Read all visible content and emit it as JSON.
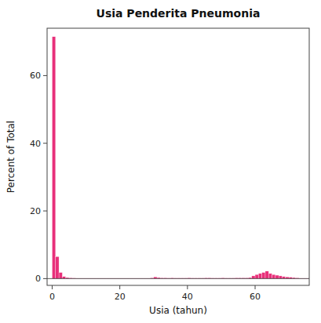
{
  "chart_data": {
    "type": "histogram",
    "title": "Usia Penderita Pneumonia",
    "xlabel": "Usia (tahun)",
    "ylabel": "Percent of Total",
    "color": "#E8307A",
    "xlim": [
      -1.5,
      76
    ],
    "ylim": [
      -2,
      74
    ],
    "xticks": [
      0,
      20,
      40,
      60
    ],
    "yticks": [
      0,
      20,
      40,
      60
    ],
    "bins": [
      0,
      1,
      2,
      3,
      4,
      5,
      6,
      7,
      8,
      9,
      10,
      11,
      12,
      13,
      14,
      15,
      16,
      17,
      18,
      19,
      20,
      21,
      22,
      23,
      24,
      25,
      26,
      27,
      28,
      29,
      30,
      31,
      32,
      33,
      34,
      35,
      36,
      37,
      38,
      39,
      40,
      41,
      42,
      43,
      44,
      45,
      46,
      47,
      48,
      49,
      50,
      51,
      52,
      53,
      54,
      55,
      56,
      57,
      58,
      59,
      60,
      61,
      62,
      63,
      64,
      65,
      66,
      67,
      68,
      69,
      70,
      71,
      72,
      73,
      74,
      75,
      76
    ],
    "values": [
      71.5,
      6.5,
      1.8,
      0.6,
      0.3,
      0.2,
      0.15,
      0.1,
      0.1,
      0.1,
      0.1,
      0.1,
      0.1,
      0.1,
      0.1,
      0.1,
      0.1,
      0.1,
      0.1,
      0.1,
      0.1,
      0.1,
      0.1,
      0.1,
      0.1,
      0.1,
      0.1,
      0.1,
      0.1,
      0.2,
      0.5,
      0.3,
      0.2,
      0.2,
      0.15,
      0.2,
      0.15,
      0.15,
      0.15,
      0.15,
      0.2,
      0.15,
      0.15,
      0.15,
      0.15,
      0.2,
      0.2,
      0.15,
      0.15,
      0.15,
      0.2,
      0.15,
      0.15,
      0.15,
      0.2,
      0.2,
      0.2,
      0.2,
      0.3,
      0.8,
      1.2,
      1.5,
      1.8,
      2.2,
      1.5,
      1.2,
      1.0,
      0.8,
      0.6,
      0.5,
      0.4,
      0.3,
      0.2,
      0.1,
      0.1,
      0.1
    ],
    "grid": false
  }
}
